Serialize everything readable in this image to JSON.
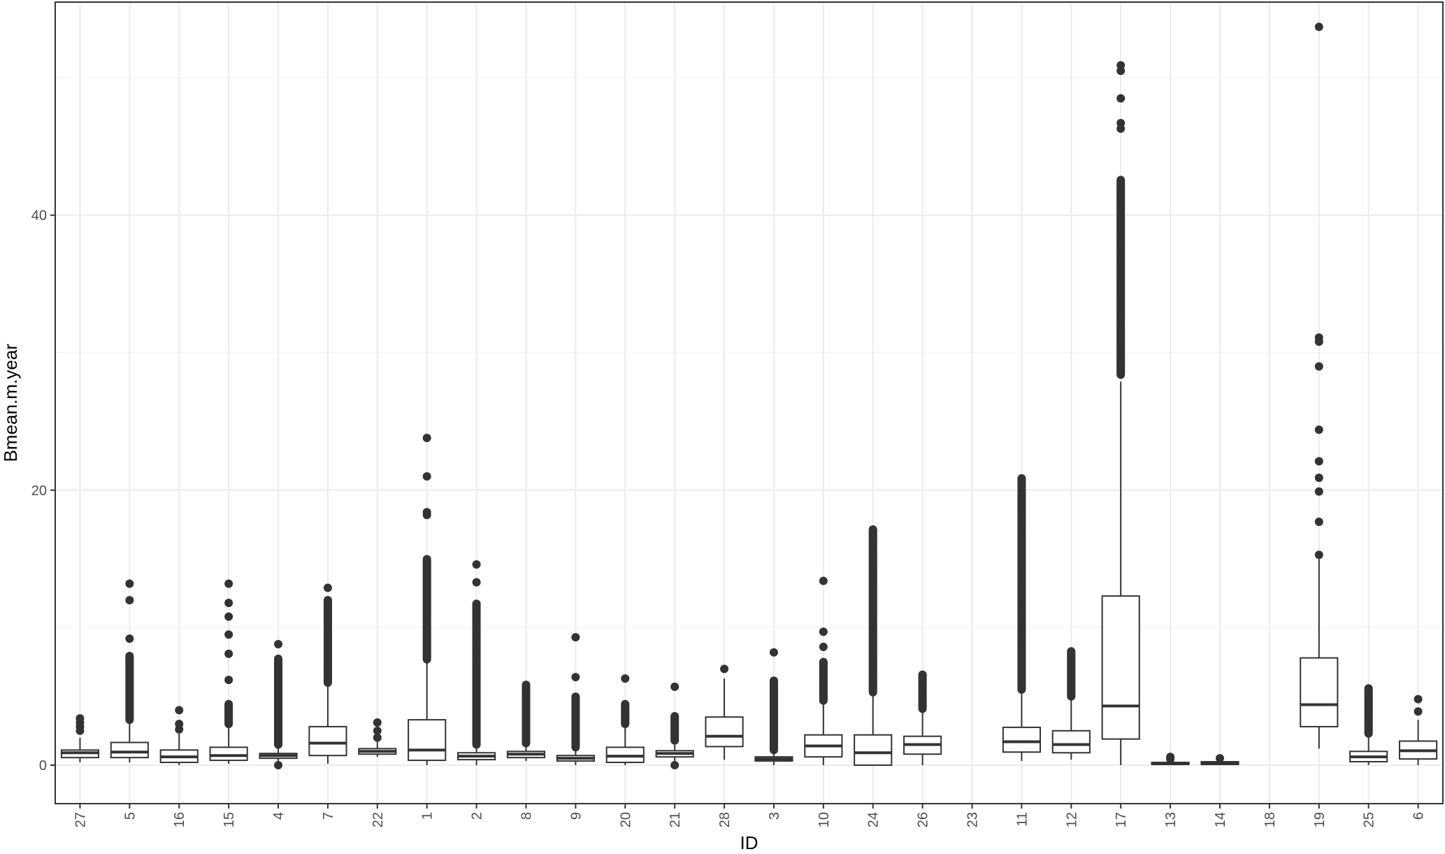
{
  "chart_data": {
    "type": "boxplot",
    "title": "",
    "xlabel": "ID",
    "ylabel": "Bmean.m.year",
    "ylim": [
      -2.8,
      55.5
    ],
    "yticks": [
      0,
      20,
      40
    ],
    "grid": true,
    "categories": [
      "27",
      "5",
      "16",
      "15",
      "4",
      "7",
      "22",
      "1",
      "2",
      "8",
      "9",
      "20",
      "21",
      "28",
      "3",
      "10",
      "24",
      "26",
      "23",
      "11",
      "12",
      "17",
      "13",
      "14",
      "18",
      "19",
      "25",
      "6"
    ],
    "boxes": [
      {
        "id": "27",
        "q1": 0.55,
        "median": 0.9,
        "q3": 1.1,
        "whisker_low": 0.2,
        "whisker_high": 2.0,
        "outliers": [
          2.5,
          2.8,
          3.1,
          3.4
        ],
        "dense_outliers": null
      },
      {
        "id": "5",
        "q1": 0.55,
        "median": 0.95,
        "q3": 1.65,
        "whisker_low": 0.2,
        "whisker_high": 3.2,
        "outliers": [
          9.2,
          12.0,
          13.2
        ],
        "dense_outliers": [
          3.3,
          8.0
        ]
      },
      {
        "id": "16",
        "q1": 0.2,
        "median": 0.6,
        "q3": 1.1,
        "whisker_low": 0.0,
        "whisker_high": 2.3,
        "outliers": [
          2.6,
          3.0,
          4.0
        ],
        "dense_outliers": null
      },
      {
        "id": "15",
        "q1": 0.35,
        "median": 0.7,
        "q3": 1.3,
        "whisker_low": 0.1,
        "whisker_high": 2.7,
        "outliers": [
          6.2,
          8.1,
          9.5,
          10.8,
          11.8,
          13.2
        ],
        "dense_outliers": [
          3.0,
          4.5
        ]
      },
      {
        "id": "4",
        "q1": 0.5,
        "median": 0.7,
        "q3": 0.85,
        "whisker_low": 0.05,
        "whisker_high": 1.4,
        "outliers": [
          0.0,
          8.8
        ],
        "dense_outliers": [
          1.5,
          7.8
        ]
      },
      {
        "id": "7",
        "q1": 0.7,
        "median": 1.6,
        "q3": 2.8,
        "whisker_low": 0.1,
        "whisker_high": 5.8,
        "outliers": [
          12.9
        ],
        "dense_outliers": [
          6.0,
          12.0
        ]
      },
      {
        "id": "22",
        "q1": 0.8,
        "median": 1.0,
        "q3": 1.2,
        "whisker_low": 0.6,
        "whisker_high": 1.7,
        "outliers": [
          2.0,
          2.5,
          3.1
        ],
        "dense_outliers": null
      },
      {
        "id": "1",
        "q1": 0.35,
        "median": 1.1,
        "q3": 3.3,
        "whisker_low": 0.0,
        "whisker_high": 7.5,
        "outliers": [
          18.2,
          18.4,
          21.0,
          23.8
        ],
        "dense_outliers": [
          7.7,
          15.0
        ]
      },
      {
        "id": "2",
        "q1": 0.4,
        "median": 0.65,
        "q3": 0.9,
        "whisker_low": 0.0,
        "whisker_high": 1.5,
        "outliers": [
          13.3,
          14.6
        ],
        "dense_outliers": [
          1.5,
          11.8
        ]
      },
      {
        "id": "8",
        "q1": 0.55,
        "median": 0.8,
        "q3": 1.0,
        "whisker_low": 0.3,
        "whisker_high": 1.5,
        "outliers": [],
        "dense_outliers": [
          1.6,
          5.9
        ]
      },
      {
        "id": "9",
        "q1": 0.3,
        "median": 0.5,
        "q3": 0.7,
        "whisker_low": 0.0,
        "whisker_high": 1.2,
        "outliers": [
          6.4,
          9.3
        ],
        "dense_outliers": [
          1.3,
          5.0
        ]
      },
      {
        "id": "20",
        "q1": 0.2,
        "median": 0.65,
        "q3": 1.3,
        "whisker_low": 0.0,
        "whisker_high": 2.8,
        "outliers": [
          6.3
        ],
        "dense_outliers": [
          3.0,
          4.5
        ]
      },
      {
        "id": "21",
        "q1": 0.6,
        "median": 0.85,
        "q3": 1.05,
        "whisker_low": 0.1,
        "whisker_high": 1.7,
        "outliers": [
          0.0,
          5.7
        ],
        "dense_outliers": [
          1.8,
          3.6
        ]
      },
      {
        "id": "28",
        "q1": 1.35,
        "median": 2.1,
        "q3": 3.5,
        "whisker_low": 0.4,
        "whisker_high": 6.3,
        "outliers": [
          7.0
        ],
        "dense_outliers": null
      },
      {
        "id": "3",
        "q1": 0.3,
        "median": 0.45,
        "q3": 0.6,
        "whisker_low": 0.0,
        "whisker_high": 1.0,
        "outliers": [
          8.2
        ],
        "dense_outliers": [
          1.1,
          6.2
        ]
      },
      {
        "id": "10",
        "q1": 0.6,
        "median": 1.4,
        "q3": 2.2,
        "whisker_low": 0.0,
        "whisker_high": 4.6,
        "outliers": [
          8.6,
          9.7,
          13.4
        ],
        "dense_outliers": [
          4.7,
          7.5
        ]
      },
      {
        "id": "24",
        "q1": 0.0,
        "median": 0.9,
        "q3": 2.2,
        "whisker_low": 0.0,
        "whisker_high": 5.2,
        "outliers": [],
        "dense_outliers": [
          5.3,
          17.2
        ]
      },
      {
        "id": "26",
        "q1": 0.8,
        "median": 1.5,
        "q3": 2.1,
        "whisker_low": 0.0,
        "whisker_high": 3.9,
        "outliers": [],
        "dense_outliers": [
          4.1,
          6.6
        ]
      },
      {
        "id": "23",
        "q1": null,
        "median": null,
        "q3": null,
        "whisker_low": null,
        "whisker_high": null,
        "outliers": [],
        "dense_outliers": null
      },
      {
        "id": "11",
        "q1": 0.95,
        "median": 1.7,
        "q3": 2.75,
        "whisker_low": 0.3,
        "whisker_high": 5.4,
        "outliers": [],
        "dense_outliers": [
          5.5,
          20.9
        ]
      },
      {
        "id": "12",
        "q1": 0.9,
        "median": 1.5,
        "q3": 2.5,
        "whisker_low": 0.4,
        "whisker_high": 4.9,
        "outliers": [],
        "dense_outliers": [
          5.0,
          8.3
        ]
      },
      {
        "id": "17",
        "q1": 1.9,
        "median": 4.3,
        "q3": 12.3,
        "whisker_low": 0.0,
        "whisker_high": 27.9,
        "outliers": [
          46.3,
          46.7,
          48.5,
          50.5,
          50.9
        ],
        "dense_outliers": [
          28.4,
          42.6
        ]
      },
      {
        "id": "13",
        "q1": 0.05,
        "median": 0.1,
        "q3": 0.2,
        "whisker_low": 0.0,
        "whisker_high": 0.35,
        "outliers": [
          0.45,
          0.6
        ],
        "dense_outliers": null
      },
      {
        "id": "14",
        "q1": 0.05,
        "median": 0.12,
        "q3": 0.25,
        "whisker_low": 0.0,
        "whisker_high": 0.35,
        "outliers": [
          0.5
        ],
        "dense_outliers": null
      },
      {
        "id": "18",
        "q1": null,
        "median": null,
        "q3": null,
        "whisker_low": null,
        "whisker_high": null,
        "outliers": [],
        "dense_outliers": null
      },
      {
        "id": "19",
        "q1": 2.8,
        "median": 4.4,
        "q3": 7.8,
        "whisker_low": 1.2,
        "whisker_high": 15.0,
        "outliers": [
          15.3,
          17.7,
          19.9,
          20.9,
          22.1,
          24.4,
          29.0,
          30.8,
          31.1,
          53.7
        ],
        "dense_outliers": null
      },
      {
        "id": "25",
        "q1": 0.25,
        "median": 0.6,
        "q3": 1.0,
        "whisker_low": 0.0,
        "whisker_high": 2.1,
        "outliers": [],
        "dense_outliers": [
          2.3,
          5.6
        ]
      },
      {
        "id": "6",
        "q1": 0.45,
        "median": 1.05,
        "q3": 1.75,
        "whisker_low": 0.0,
        "whisker_high": 3.3,
        "outliers": [
          3.9,
          4.8
        ],
        "dense_outliers": null
      }
    ],
    "colors": {
      "box_fill": "#ffffff",
      "line": "#333333",
      "grid_major": "#ebebeb",
      "grid_minor": "#f4f4f4",
      "panel_border": "#333333"
    }
  }
}
